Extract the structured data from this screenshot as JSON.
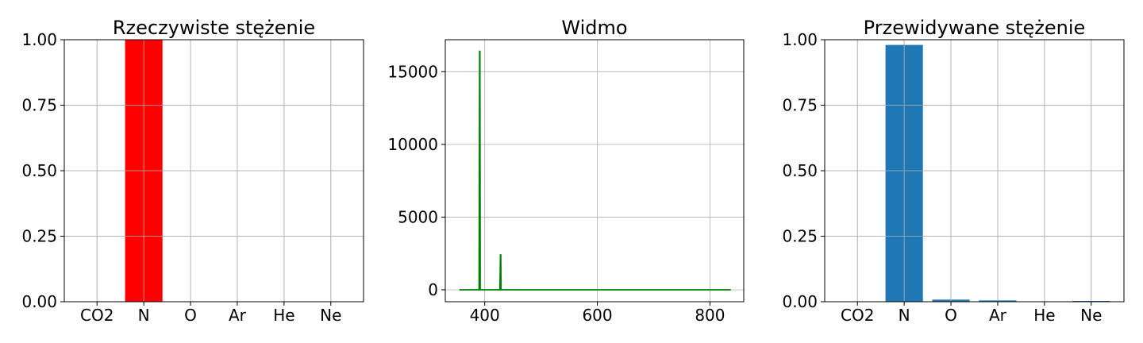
{
  "chart_data": [
    {
      "type": "bar",
      "title": "Rzeczywiste stężenie",
      "xlabel": "",
      "ylabel": "",
      "categories": [
        "CO2",
        "N",
        "O",
        "Ar",
        "He",
        "Ne"
      ],
      "values": [
        0,
        1.0,
        0,
        0,
        0,
        0
      ],
      "ylim": [
        0,
        1.0
      ],
      "yticks": [
        0.0,
        0.25,
        0.5,
        0.75,
        1.0
      ],
      "ytick_labels": [
        "0.00",
        "0.25",
        "0.50",
        "0.75",
        "1.00"
      ],
      "grid": true,
      "color": "#ff0000"
    },
    {
      "type": "line",
      "title": "Widmo",
      "xlabel": "",
      "ylabel": "",
      "x": [
        355,
        390,
        391,
        391.5,
        392,
        427,
        428,
        428.5,
        429,
        837
      ],
      "y": [
        0,
        0,
        16400,
        16400,
        0,
        0,
        2400,
        2400,
        0,
        0
      ],
      "xlim": [
        330,
        860
      ],
      "ylim": [
        -820,
        17200
      ],
      "xticks": [
        400,
        600,
        800
      ],
      "xtick_labels": [
        "400",
        "600",
        "800"
      ],
      "yticks": [
        0,
        5000,
        10000,
        15000
      ],
      "ytick_labels": [
        "0",
        "5000",
        "10000",
        "15000"
      ],
      "grid": true,
      "color": "#008000"
    },
    {
      "type": "bar",
      "title": "Przewidywane stężenie",
      "xlabel": "",
      "ylabel": "",
      "categories": [
        "CO2",
        "N",
        "O",
        "Ar",
        "He",
        "Ne"
      ],
      "values": [
        0,
        0.98,
        0.008,
        0.005,
        0,
        0.003
      ],
      "ylim": [
        0,
        1.0
      ],
      "yticks": [
        0.0,
        0.25,
        0.5,
        0.75,
        1.0
      ],
      "ytick_labels": [
        "0.00",
        "0.25",
        "0.50",
        "0.75",
        "1.00"
      ],
      "grid": true,
      "color": "#1f77b4"
    }
  ]
}
